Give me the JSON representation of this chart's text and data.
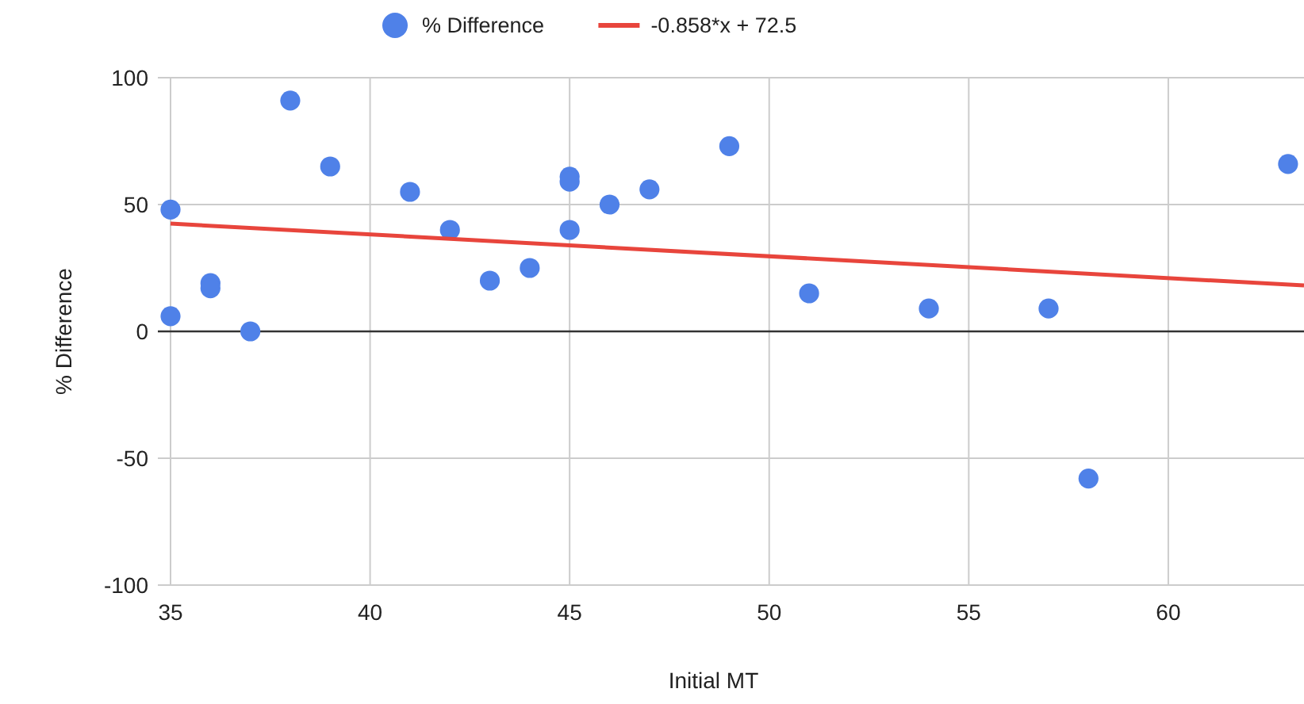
{
  "chart_data": {
    "type": "scatter",
    "xlabel": "Initial MT",
    "ylabel": "% Difference",
    "xlim": [
      35,
      63.4
    ],
    "xticks": [
      35,
      40,
      45,
      50,
      55,
      60
    ],
    "ylim": [
      -100,
      100
    ],
    "yticks": [
      -100,
      -50,
      0,
      50,
      100
    ],
    "grid": true,
    "legend": "top",
    "series": [
      {
        "name": "% Difference",
        "marker": "circle",
        "color": "#4f81e8",
        "x": [
          35,
          35,
          36,
          36,
          37,
          38,
          39,
          41,
          42,
          43,
          44,
          45,
          45,
          45,
          46,
          47,
          49,
          51,
          54,
          57,
          58,
          63
        ],
        "values": [
          48,
          6,
          19,
          17,
          0,
          91,
          65,
          55,
          40,
          20,
          25,
          61,
          59,
          40,
          50,
          56,
          73,
          15,
          9,
          9,
          -58,
          66
        ]
      },
      {
        "name": "-0.858*x + 72.5",
        "type": "line",
        "color": "#e8453c",
        "x": [
          35,
          63.4
        ],
        "values": [
          42.5,
          18.1
        ]
      }
    ],
    "ref_lines": [
      {
        "axis": "y",
        "value": 0,
        "color": "#333333"
      }
    ]
  }
}
